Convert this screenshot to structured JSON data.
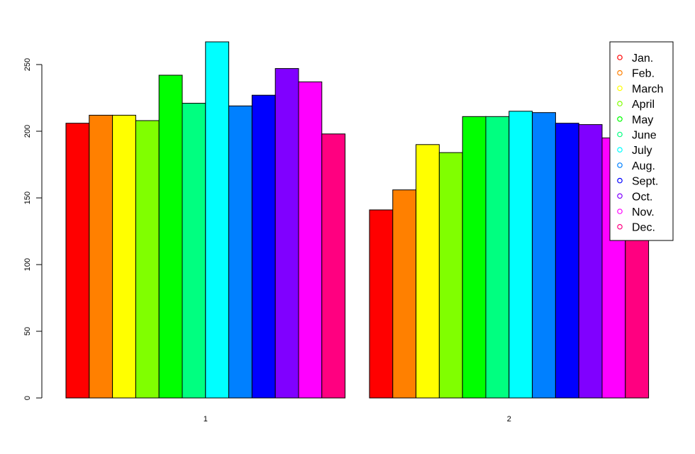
{
  "chart_data": {
    "type": "bar",
    "grouped": true,
    "categories": [
      "1",
      "2"
    ],
    "series": [
      {
        "name": "Jan.",
        "color": "#FF0000",
        "values": [
          206,
          141
        ]
      },
      {
        "name": "Feb.",
        "color": "#FF8000",
        "values": [
          212,
          156
        ]
      },
      {
        "name": "March",
        "color": "#FFFF00",
        "values": [
          212,
          190
        ]
      },
      {
        "name": "April",
        "color": "#80FF00",
        "values": [
          208,
          184
        ]
      },
      {
        "name": "May",
        "color": "#00FF00",
        "values": [
          242,
          211
        ]
      },
      {
        "name": "June",
        "color": "#00FF80",
        "values": [
          221,
          211
        ]
      },
      {
        "name": "July",
        "color": "#00FFFF",
        "values": [
          267,
          215
        ]
      },
      {
        "name": "Aug.",
        "color": "#0080FF",
        "values": [
          219,
          214
        ]
      },
      {
        "name": "Sept.",
        "color": "#0000FF",
        "values": [
          227,
          206
        ]
      },
      {
        "name": "Oct.",
        "color": "#8000FF",
        "values": [
          247,
          205
        ]
      },
      {
        "name": "Nov.",
        "color": "#FF00FF",
        "values": [
          237,
          195
        ]
      },
      {
        "name": "Dec.",
        "color": "#FF0080",
        "values": [
          198,
          185
        ]
      }
    ],
    "ylim": [
      0,
      267
    ],
    "yticks": [
      0,
      50,
      100,
      150,
      200,
      250
    ],
    "title": "",
    "xlabel": "",
    "ylabel": "",
    "grid": false,
    "legend": "top-right"
  }
}
